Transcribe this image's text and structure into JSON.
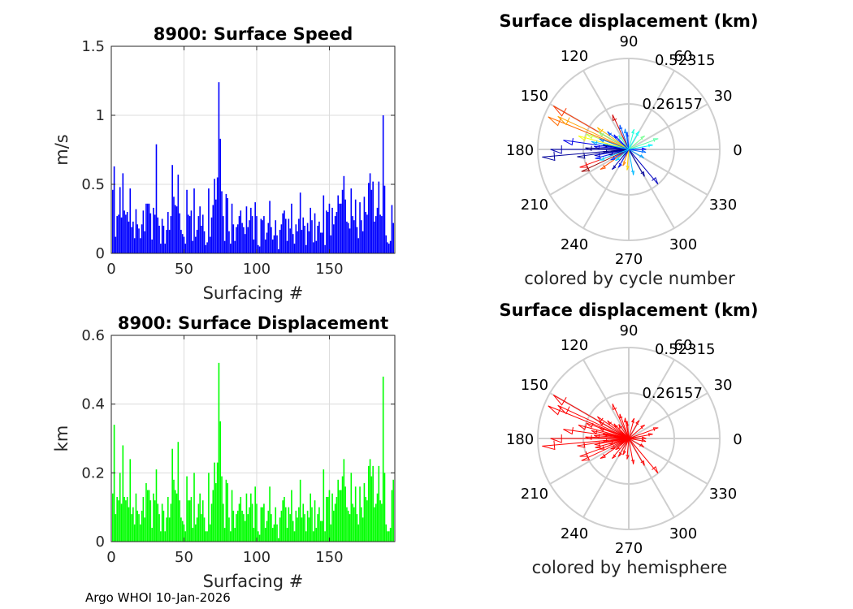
{
  "footer": "Argo WHOI 10-Jan-2026",
  "chart_data": [
    {
      "type": "bar",
      "title": "8900: Surface Speed",
      "xlabel": "Surfacing #",
      "ylabel": "m/s",
      "xlim": [
        0,
        195
      ],
      "ylim": [
        0,
        1.5
      ],
      "xticks": [
        "0",
        "50",
        "100",
        "150"
      ],
      "yticks": [
        "0",
        "0.5",
        "1",
        "1.5"
      ],
      "color": "#0000ff",
      "values": [
        0.46,
        0.63,
        0.12,
        0.27,
        0.28,
        0.48,
        0.26,
        0.58,
        0.31,
        0.28,
        0.3,
        0.23,
        0.47,
        0.19,
        0.23,
        0.11,
        0.32,
        0.21,
        0.18,
        0.11,
        0.21,
        0.31,
        0.16,
        0.36,
        0.36,
        0.36,
        0.29,
        0.1,
        0.33,
        0.28,
        0.79,
        0.26,
        0.2,
        0.07,
        0.25,
        0.2,
        0.07,
        0.17,
        0.3,
        0.17,
        0.27,
        0.64,
        0.41,
        0.35,
        0.34,
        0.57,
        0.29,
        0.17,
        0.14,
        0.12,
        0.07,
        0.46,
        0.28,
        0.27,
        0.31,
        0.09,
        0.47,
        0.12,
        0.17,
        0.27,
        0.34,
        0.2,
        0.28,
        0.16,
        0.06,
        0.08,
        0.47,
        0.12,
        0.26,
        0.35,
        0.54,
        0.39,
        0.55,
        1.24,
        0.83,
        0.45,
        0.27,
        0.09,
        0.43,
        0.4,
        0.16,
        0.07,
        0.36,
        0.21,
        0.09,
        0.19,
        0.21,
        0.27,
        0.31,
        0.22,
        0.19,
        0.14,
        0.34,
        0.19,
        0.24,
        0.33,
        0.27,
        0.1,
        0.37,
        0.27,
        0.06,
        0.05,
        0.25,
        0.24,
        0.27,
        0.1,
        0.15,
        0.22,
        0.38,
        0.19,
        0.1,
        0.13,
        0.24,
        0.13,
        0.03,
        0.17,
        0.21,
        0.29,
        0.31,
        0.25,
        0.09,
        0.25,
        0.18,
        0.36,
        0.14,
        0.07,
        0.21,
        0.16,
        0.25,
        0.44,
        0.17,
        0.26,
        0.2,
        0.06,
        0.22,
        0.16,
        0.33,
        0.24,
        0.08,
        0.29,
        0.09,
        0.2,
        0.23,
        0.15,
        0.15,
        0.42,
        0.06,
        0.31,
        0.3,
        0.36,
        0.13,
        0.33,
        0.21,
        0.27,
        0.3,
        0.42,
        0.36,
        0.36,
        0.46,
        0.56,
        0.39,
        0.23,
        0.22,
        0.18,
        0.47,
        0.27,
        0.24,
        0.39,
        0.19,
        0.11,
        0.37,
        0.24,
        0.16,
        0.41,
        0.3,
        0.28,
        0.51,
        0.58,
        0.46,
        0.52,
        0.23,
        0.27,
        0.33,
        0.52,
        0.28,
        0.27,
        1.0,
        0.49,
        0.13,
        0.08,
        0.07,
        0.09,
        0.35,
        0.22
      ]
    },
    {
      "type": "bar",
      "title": "8900: Surface Displacement",
      "xlabel": "Surfacing #",
      "ylabel": "km",
      "xlim": [
        0,
        195
      ],
      "ylim": [
        0,
        0.6
      ],
      "xticks": [
        "0",
        "50",
        "100",
        "150"
      ],
      "yticks": [
        "0",
        "0.2",
        "0.4",
        "0.6"
      ],
      "color": "#00ff00",
      "values": [
        0.14,
        0.34,
        0.08,
        0.13,
        0.12,
        0.2,
        0.11,
        0.28,
        0.13,
        0.12,
        0.13,
        0.1,
        0.24,
        0.08,
        0.1,
        0.05,
        0.14,
        0.09,
        0.08,
        0.05,
        0.09,
        0.13,
        0.07,
        0.17,
        0.15,
        0.15,
        0.12,
        0.04,
        0.14,
        0.12,
        0.21,
        0.11,
        0.08,
        0.03,
        0.11,
        0.09,
        0.03,
        0.07,
        0.13,
        0.07,
        0.11,
        0.27,
        0.18,
        0.15,
        0.14,
        0.29,
        0.12,
        0.07,
        0.06,
        0.05,
        0.03,
        0.19,
        0.12,
        0.12,
        0.13,
        0.04,
        0.2,
        0.05,
        0.07,
        0.11,
        0.14,
        0.08,
        0.12,
        0.07,
        0.03,
        0.03,
        0.2,
        0.05,
        0.11,
        0.15,
        0.23,
        0.17,
        0.23,
        0.52,
        0.35,
        0.19,
        0.11,
        0.04,
        0.18,
        0.17,
        0.07,
        0.03,
        0.15,
        0.09,
        0.04,
        0.08,
        0.09,
        0.11,
        0.13,
        0.09,
        0.08,
        0.06,
        0.14,
        0.08,
        0.1,
        0.14,
        0.11,
        0.04,
        0.16,
        0.11,
        0.03,
        0.02,
        0.1,
        0.1,
        0.11,
        0.04,
        0.06,
        0.09,
        0.16,
        0.08,
        0.04,
        0.05,
        0.1,
        0.05,
        0.01,
        0.07,
        0.09,
        0.12,
        0.13,
        0.1,
        0.04,
        0.1,
        0.08,
        0.15,
        0.06,
        0.03,
        0.09,
        0.07,
        0.1,
        0.18,
        0.07,
        0.11,
        0.08,
        0.03,
        0.09,
        0.07,
        0.14,
        0.1,
        0.03,
        0.12,
        0.04,
        0.08,
        0.1,
        0.06,
        0.06,
        0.21,
        0.03,
        0.13,
        0.13,
        0.15,
        0.05,
        0.14,
        0.09,
        0.11,
        0.13,
        0.18,
        0.15,
        0.15,
        0.19,
        0.24,
        0.16,
        0.1,
        0.09,
        0.08,
        0.2,
        0.11,
        0.1,
        0.16,
        0.08,
        0.05,
        0.16,
        0.1,
        0.07,
        0.17,
        0.13,
        0.12,
        0.22,
        0.24,
        0.19,
        0.22,
        0.1,
        0.11,
        0.14,
        0.22,
        0.12,
        0.11,
        0.48,
        0.2,
        0.05,
        0.03,
        0.03,
        0.04,
        0.15,
        0.18
      ]
    },
    {
      "type": "polar-compass",
      "title": "Surface displacement (km)",
      "caption": "colored by cycle number",
      "rmax": 0.52315,
      "rticks": [
        "0.26157",
        "0.52315"
      ],
      "angle_ticks": [
        "0",
        "30",
        "60",
        "90",
        "120",
        "150",
        "180",
        "210",
        "240",
        "270",
        "300",
        "330"
      ],
      "color_mode": "cycle",
      "vectors": [
        {
          "dir": 158,
          "mag": 0.5,
          "cycle": 150
        },
        {
          "dir": 150,
          "mag": 0.5,
          "cycle": 160
        },
        {
          "dir": 155,
          "mag": 0.45,
          "cycle": 140
        },
        {
          "dir": 185,
          "mag": 0.5,
          "cycle": 5
        },
        {
          "dir": 180,
          "mag": 0.45,
          "cycle": 10
        },
        {
          "dir": 172,
          "mag": 0.38,
          "cycle": 20
        },
        {
          "dir": 165,
          "mag": 0.3,
          "cycle": 120
        },
        {
          "dir": 160,
          "mag": 0.26,
          "cycle": 110
        },
        {
          "dir": 150,
          "mag": 0.2,
          "cycle": 100
        },
        {
          "dir": 145,
          "mag": 0.22,
          "cycle": 135
        },
        {
          "dir": 200,
          "mag": 0.3,
          "cycle": 170
        },
        {
          "dir": 205,
          "mag": 0.3,
          "cycle": 190
        },
        {
          "dir": 215,
          "mag": 0.2,
          "cycle": 155
        },
        {
          "dir": 195,
          "mag": 0.2,
          "cycle": 30
        },
        {
          "dir": 190,
          "mag": 0.2,
          "cycle": 15
        },
        {
          "dir": 115,
          "mag": 0.22,
          "cycle": 180
        },
        {
          "dir": 110,
          "mag": 0.15,
          "cycle": 40
        },
        {
          "dir": 100,
          "mag": 0.12,
          "cycle": 50
        },
        {
          "dir": 95,
          "mag": 0.1,
          "cycle": 35
        },
        {
          "dir": 75,
          "mag": 0.12,
          "cycle": 80
        },
        {
          "dir": 60,
          "mag": 0.12,
          "cycle": 75
        },
        {
          "dir": 40,
          "mag": 0.12,
          "cycle": 95
        },
        {
          "dir": 20,
          "mag": 0.18,
          "cycle": 90
        },
        {
          "dir": 10,
          "mag": 0.14,
          "cycle": 70
        },
        {
          "dir": 0,
          "mag": 0.1,
          "cycle": 25
        },
        {
          "dir": 350,
          "mag": 0.1,
          "cycle": 45
        },
        {
          "dir": 330,
          "mag": 0.1,
          "cycle": 55
        },
        {
          "dir": 300,
          "mag": 0.18,
          "cycle": 5
        },
        {
          "dir": 310,
          "mag": 0.26,
          "cycle": 12
        },
        {
          "dir": 280,
          "mag": 0.15,
          "cycle": 60
        },
        {
          "dir": 265,
          "mag": 0.12,
          "cycle": 130
        },
        {
          "dir": 250,
          "mag": 0.1,
          "cycle": 145
        },
        {
          "dir": 240,
          "mag": 0.12,
          "cycle": 28
        },
        {
          "dir": 230,
          "mag": 0.15,
          "cycle": 8
        },
        {
          "dir": 220,
          "mag": 0.1,
          "cycle": 65
        },
        {
          "dir": 135,
          "mag": 0.12,
          "cycle": 22
        },
        {
          "dir": 125,
          "mag": 0.1,
          "cycle": 88
        },
        {
          "dir": 170,
          "mag": 0.15,
          "cycle": 3
        },
        {
          "dir": 175,
          "mag": 0.2,
          "cycle": 18
        },
        {
          "dir": 185,
          "mag": 0.15,
          "cycle": 2
        },
        {
          "dir": 195,
          "mag": 0.12,
          "cycle": 7
        },
        {
          "dir": 210,
          "mag": 0.12,
          "cycle": 33
        },
        {
          "dir": 140,
          "mag": 0.16,
          "cycle": 38
        },
        {
          "dir": 160,
          "mag": 0.18,
          "cycle": 48
        },
        {
          "dir": 178,
          "mag": 0.25,
          "cycle": 1
        },
        {
          "dir": 188,
          "mag": 0.3,
          "cycle": 4
        },
        {
          "dir": 168,
          "mag": 0.22,
          "cycle": 58
        },
        {
          "dir": 200,
          "mag": 0.18,
          "cycle": 66
        }
      ]
    },
    {
      "type": "polar-compass",
      "title": "Surface displacement (km)",
      "caption": "colored by hemisphere",
      "rmax": 0.52315,
      "rticks": [
        "0.26157",
        "0.52315"
      ],
      "angle_ticks": [
        "0",
        "30",
        "60",
        "90",
        "120",
        "150",
        "180",
        "210",
        "240",
        "270",
        "300",
        "330"
      ],
      "color_mode": "hemisphere",
      "color": "#ff0000",
      "vectors": [
        {
          "dir": 158,
          "mag": 0.5
        },
        {
          "dir": 150,
          "mag": 0.5
        },
        {
          "dir": 155,
          "mag": 0.45
        },
        {
          "dir": 185,
          "mag": 0.5
        },
        {
          "dir": 180,
          "mag": 0.45
        },
        {
          "dir": 172,
          "mag": 0.38
        },
        {
          "dir": 165,
          "mag": 0.3
        },
        {
          "dir": 160,
          "mag": 0.26
        },
        {
          "dir": 150,
          "mag": 0.2
        },
        {
          "dir": 145,
          "mag": 0.22
        },
        {
          "dir": 200,
          "mag": 0.3
        },
        {
          "dir": 205,
          "mag": 0.3
        },
        {
          "dir": 215,
          "mag": 0.2
        },
        {
          "dir": 195,
          "mag": 0.2
        },
        {
          "dir": 190,
          "mag": 0.2
        },
        {
          "dir": 115,
          "mag": 0.22
        },
        {
          "dir": 110,
          "mag": 0.15
        },
        {
          "dir": 100,
          "mag": 0.12
        },
        {
          "dir": 95,
          "mag": 0.1
        },
        {
          "dir": 75,
          "mag": 0.12
        },
        {
          "dir": 60,
          "mag": 0.12
        },
        {
          "dir": 40,
          "mag": 0.12
        },
        {
          "dir": 20,
          "mag": 0.18
        },
        {
          "dir": 10,
          "mag": 0.14
        },
        {
          "dir": 0,
          "mag": 0.1
        },
        {
          "dir": 350,
          "mag": 0.1
        },
        {
          "dir": 330,
          "mag": 0.1
        },
        {
          "dir": 300,
          "mag": 0.18
        },
        {
          "dir": 310,
          "mag": 0.26
        },
        {
          "dir": 280,
          "mag": 0.15
        },
        {
          "dir": 265,
          "mag": 0.12
        },
        {
          "dir": 250,
          "mag": 0.1
        },
        {
          "dir": 240,
          "mag": 0.12
        },
        {
          "dir": 230,
          "mag": 0.15
        },
        {
          "dir": 220,
          "mag": 0.1
        },
        {
          "dir": 135,
          "mag": 0.12
        },
        {
          "dir": 125,
          "mag": 0.1
        },
        {
          "dir": 170,
          "mag": 0.15
        },
        {
          "dir": 175,
          "mag": 0.2
        },
        {
          "dir": 185,
          "mag": 0.15
        },
        {
          "dir": 195,
          "mag": 0.12
        },
        {
          "dir": 210,
          "mag": 0.12
        },
        {
          "dir": 140,
          "mag": 0.16
        },
        {
          "dir": 160,
          "mag": 0.18
        },
        {
          "dir": 178,
          "mag": 0.25
        },
        {
          "dir": 188,
          "mag": 0.3
        },
        {
          "dir": 168,
          "mag": 0.22
        },
        {
          "dir": 200,
          "mag": 0.18
        }
      ]
    }
  ]
}
